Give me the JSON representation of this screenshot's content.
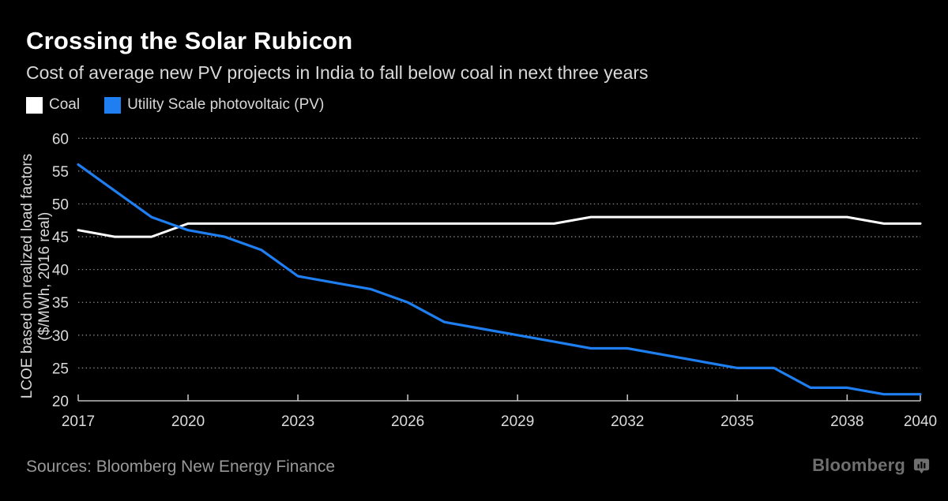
{
  "header": {
    "title": "Crossing the Solar Rubicon",
    "subtitle": "Cost of average new PV projects in India to fall below coal in next three years"
  },
  "legend": [
    {
      "label": "Coal",
      "color": "#ffffff"
    },
    {
      "label": "Utility Scale photovoltaic (PV)",
      "color": "#1f7ff0"
    }
  ],
  "chart_data": {
    "type": "line",
    "title": "Crossing the Solar Rubicon",
    "ylabel_line1": "LCOE based on realized load factors",
    "ylabel_line2": "($/MWh, 2016 real)",
    "x": [
      2017,
      2018,
      2019,
      2020,
      2021,
      2022,
      2023,
      2024,
      2025,
      2026,
      2027,
      2028,
      2029,
      2030,
      2031,
      2032,
      2033,
      2034,
      2035,
      2036,
      2037,
      2038,
      2039,
      2040
    ],
    "series": [
      {
        "name": "Coal",
        "color": "#ffffff",
        "values": [
          46,
          45,
          45,
          47,
          47,
          47,
          47,
          47,
          47,
          47,
          47,
          47,
          47,
          47,
          48,
          48,
          48,
          48,
          48,
          48,
          48,
          48,
          47,
          47
        ]
      },
      {
        "name": "Utility Scale photovoltaic (PV)",
        "color": "#1f7ff0",
        "values": [
          56,
          52,
          48,
          46,
          45,
          43,
          39,
          38,
          37,
          35,
          32,
          31,
          30,
          29,
          28,
          28,
          27,
          26,
          25,
          25,
          22,
          22,
          21,
          21
        ]
      }
    ],
    "xticks": [
      2017,
      2020,
      2023,
      2026,
      2029,
      2032,
      2035,
      2038,
      2040
    ],
    "yticks": [
      20,
      25,
      30,
      35,
      40,
      45,
      50,
      55,
      60
    ],
    "xlim": [
      2017,
      2040
    ],
    "ylim": [
      20,
      60
    ],
    "grid": "dotted-horizontal",
    "legend_position": "top-left",
    "colors": {
      "grid": "#8a8a8a",
      "axis": "#bdbdbd",
      "tick_text": "#dcdcdc"
    }
  },
  "footer": {
    "sources": "Sources: Bloomberg New Energy Finance",
    "brand": "Bloomberg"
  }
}
